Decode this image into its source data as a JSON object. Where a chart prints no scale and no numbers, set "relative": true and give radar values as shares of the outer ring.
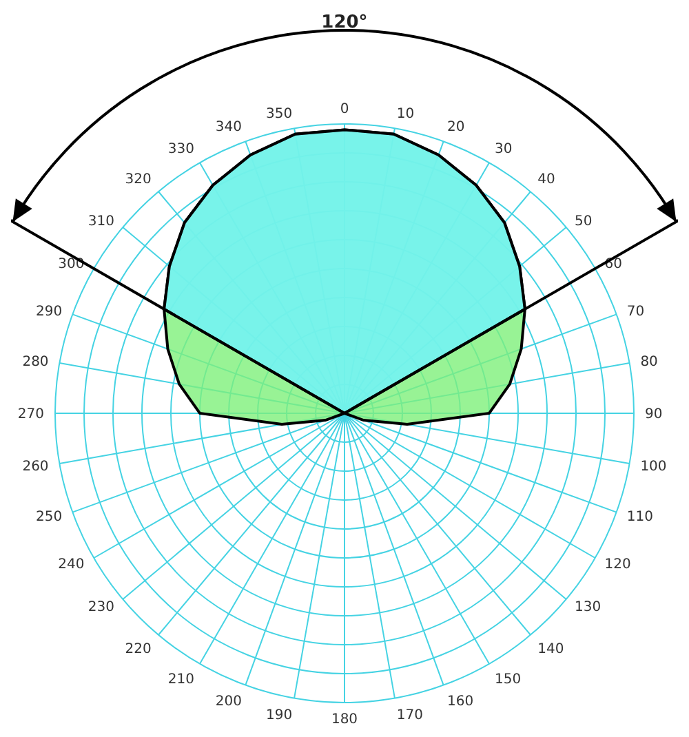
{
  "chart_data": {
    "type": "radar",
    "relative": true,
    "grid": true,
    "annotations": [
      "120°"
    ],
    "categories": [
      "0",
      "10",
      "20",
      "30",
      "40",
      "50",
      "60",
      "70",
      "80",
      "90",
      "100",
      "110",
      "120",
      "130",
      "140",
      "150",
      "160",
      "170",
      "180",
      "190",
      "200",
      "210",
      "220",
      "230",
      "240",
      "250",
      "260",
      "270",
      "280",
      "290",
      "300",
      "310",
      "320",
      "330",
      "340",
      "350"
    ],
    "series": [
      {
        "color": "#7ef07a",
        "values": [
          0.98,
          0.98,
          0.95,
          0.91,
          0.86,
          0.79,
          0.72,
          0.65,
          0.58,
          0.5,
          0.22,
          0.07,
          0,
          0,
          0,
          0,
          0,
          0,
          0,
          0,
          0,
          0,
          0,
          0,
          0,
          0.07,
          0.22,
          0.5,
          0.58,
          0.65,
          0.72,
          0.79,
          0.86,
          0.91,
          0.95,
          0.98
        ]
      },
      {
        "color": "#70f2ff",
        "values": [
          0.98,
          0.98,
          0.95,
          0.91,
          0.86,
          0.79,
          0.72,
          0,
          0,
          0,
          0,
          0,
          0,
          0,
          0,
          0,
          0,
          0,
          0,
          0,
          0,
          0,
          0,
          0,
          0,
          0,
          0,
          0,
          0,
          0,
          0.72,
          0.79,
          0.86,
          0.91,
          0.95,
          0.98
        ]
      }
    ]
  }
}
